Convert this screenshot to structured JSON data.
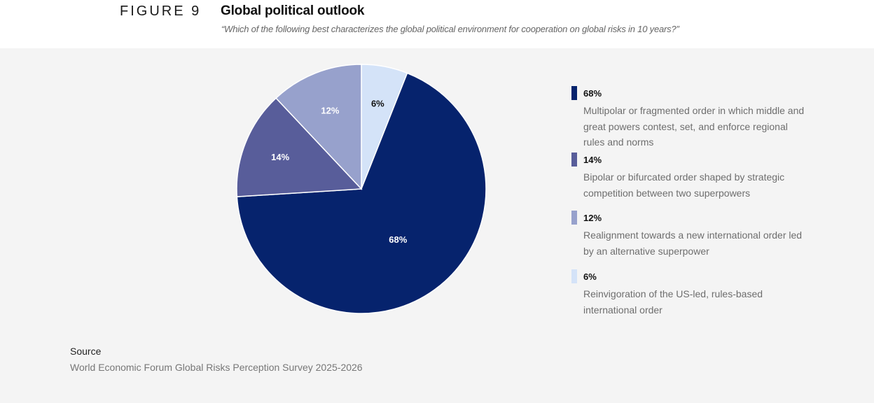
{
  "header": {
    "figure_number": "FIGURE 9",
    "title": "Global political outlook",
    "subtitle": "“Which of the following best characterizes the global political environment for cooperation on global risks in 10 years?”"
  },
  "chart_data": {
    "type": "pie",
    "title": "Global political outlook",
    "start_angle_deg": 0,
    "direction": "clockwise",
    "slices": [
      {
        "label": "6%",
        "value": 6,
        "color": "#d4e3f8",
        "label_color": "#111111",
        "description": "Reinvigoration of the US-led, rules-based international order"
      },
      {
        "label": "68%",
        "value": 68,
        "color": "#06236d",
        "label_color": "#ffffff",
        "description": "Multipolar or fragmented order in which middle and great powers contest, set, and enforce regional rules and norms"
      },
      {
        "label": "14%",
        "value": 14,
        "color": "#585d9a",
        "label_color": "#ffffff",
        "description": "Bipolar or bifurcated order shaped by strategic competition between two superpowers"
      },
      {
        "label": "12%",
        "value": 12,
        "color": "#97a1cc",
        "label_color": "#ffffff",
        "description": "Realignment towards a new international order led by an alternative superpower"
      }
    ]
  },
  "legend": [
    {
      "pct": "68%",
      "color": "#06236d",
      "description": "Multipolar or fragmented order in which middle and great powers contest, set, and enforce regional rules and norms"
    },
    {
      "pct": "14%",
      "color": "#585d9a",
      "description": "Bipolar or bifurcated order shaped by strategic competition between two superpowers"
    },
    {
      "pct": "12%",
      "color": "#97a1cc",
      "description": "Realignment towards a new international order led by an alternative superpower"
    },
    {
      "pct": "6%",
      "color": "#d4e3f8",
      "description": "Reinvigoration of the US-led, rules-based international order"
    }
  ],
  "source": {
    "heading": "Source",
    "text": "World Economic Forum Global Risks Perception Survey 2025-2026"
  }
}
